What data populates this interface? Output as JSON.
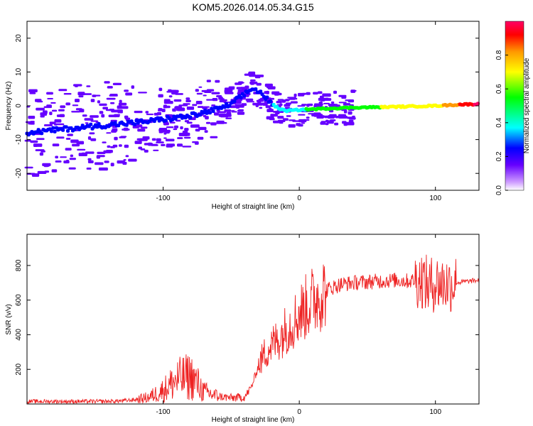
{
  "figure_title": "KOM5.2026.014.05.34.G15",
  "chart_data": [
    {
      "type": "heatmap",
      "title": "KOM5.2026.014.05.34.G15",
      "xlabel": "Height of straight line (km)",
      "ylabel": "Frequency (Hz)",
      "xlim": [
        -200,
        132
      ],
      "ylim": [
        -25,
        25
      ],
      "xticks": [
        -100,
        0,
        100
      ],
      "yticks": [
        -20,
        -10,
        0,
        10,
        20
      ],
      "colorbar": {
        "label": "Normalized spectral amplitude",
        "range": [
          0.0,
          1.0
        ],
        "ticks": [
          0.0,
          0.2,
          0.4,
          0.6,
          0.8
        ],
        "tick_labels": [
          "0.0",
          "0.2",
          "0.4",
          "0.6",
          "0.8"
        ],
        "colors": [
          "#ffffff",
          "#cc99ff",
          "#6600ff",
          "#0000ff",
          "#00ffff",
          "#00ff00",
          "#ffff00",
          "#ff9900",
          "#ff0000",
          "#ff0066"
        ]
      },
      "ridge": {
        "x": [
          -200,
          -150,
          -120,
          -100,
          -80,
          -60,
          -50,
          -40,
          -35,
          -30,
          -25,
          -20,
          -15,
          -10,
          0,
          10,
          20,
          40,
          60,
          80,
          100,
          110,
          120,
          132
        ],
        "y": [
          -8,
          -6,
          -5,
          -4,
          -3,
          -1,
          0.5,
          3.5,
          5,
          4.5,
          2.5,
          0.5,
          -0.8,
          -1.5,
          -1.2,
          -1,
          -0.8,
          -0.5,
          -0.4,
          -0.2,
          0,
          0.2,
          0.4,
          0.5
        ],
        "amplitude": [
          0.1,
          0.12,
          0.15,
          0.18,
          0.2,
          0.22,
          0.25,
          0.3,
          0.32,
          0.3,
          0.28,
          0.26,
          0.27,
          0.3,
          0.35,
          0.4,
          0.45,
          0.5,
          0.55,
          0.6,
          0.65,
          0.75,
          0.85,
          0.95
        ]
      }
    },
    {
      "type": "line",
      "xlabel": "Height of straight line (km)",
      "ylabel": "SNR (v/v)",
      "xlim": [
        -200,
        132
      ],
      "ylim": [
        0,
        980
      ],
      "xticks": [
        -100,
        0,
        100
      ],
      "yticks": [
        200,
        400,
        600,
        800
      ],
      "series": [
        {
          "name": "SNR",
          "color": "#ee2222",
          "x": [
            -200,
            -180,
            -160,
            -140,
            -130,
            -120,
            -110,
            -100,
            -90,
            -80,
            -75,
            -70,
            -60,
            -50,
            -40,
            -35,
            -30,
            -25,
            -20,
            -15,
            -10,
            -5,
            0,
            10,
            20,
            30,
            40,
            50,
            60,
            70,
            80,
            90,
            95,
            100,
            110,
            115,
            120,
            132
          ],
          "y": [
            15,
            15,
            15,
            15,
            18,
            25,
            40,
            80,
            140,
            160,
            120,
            70,
            45,
            35,
            40,
            100,
            220,
            300,
            340,
            380,
            430,
            470,
            520,
            600,
            660,
            690,
            700,
            705,
            710,
            715,
            710,
            720,
            680,
            700,
            690,
            700,
            705,
            715
          ]
        }
      ]
    }
  ]
}
